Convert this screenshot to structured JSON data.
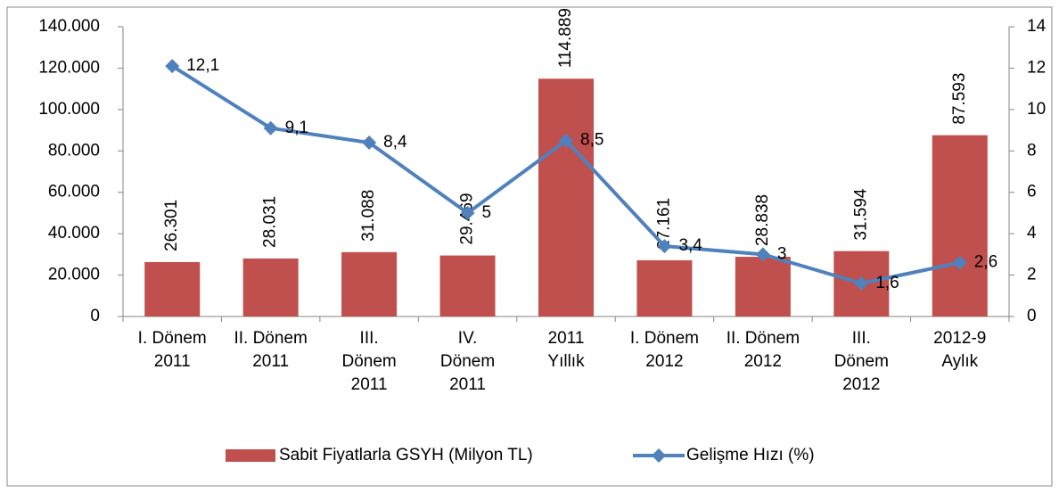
{
  "chart_data": {
    "type": "bar",
    "categories": [
      "I. Dönem\n2011",
      "II. Dönem\n2011",
      "III.\nDönem\n2011",
      "IV.\nDönem\n2011",
      "2011\nYıllık",
      "I. Dönem\n2012",
      "II. Dönem\n2012",
      "III.\nDönem\n2012",
      "2012-9\nAylık"
    ],
    "series": [
      {
        "name": "Sabit Fiyatlarla GSYH (Milyon TL)",
        "color": "#c0504d",
        "type": "bar",
        "values": [
          26301,
          28031,
          31088,
          29469,
          114889,
          27161,
          28838,
          31594,
          87593
        ],
        "value_labels": [
          "26.301",
          "28.031",
          "31.088",
          "29.469",
          "114.889",
          "27.161",
          "28.838",
          "31.594",
          "87.593"
        ]
      },
      {
        "name": "Gelişme Hızı (%)",
        "color": "#4f81bd",
        "type": "line",
        "axis": "y2",
        "values": [
          12.1,
          9.1,
          8.4,
          5,
          8.5,
          3.4,
          3,
          1.6,
          2.6
        ],
        "value_labels": [
          "12,1",
          "9,1",
          "8,4",
          "5",
          "8,5",
          "3,4",
          "3",
          "1,6",
          "2,6"
        ]
      }
    ],
    "ylim": [
      0,
      140000
    ],
    "yticks": [
      0,
      {
        "value": 20000,
        "label": "20.000"
      },
      {
        "value": 40000,
        "label": "40.000"
      },
      {
        "value": 60000,
        "label": "60.000"
      },
      {
        "value": 80000,
        "label": "80.000"
      },
      {
        "value": 100000,
        "label": "100.000"
      },
      {
        "value": 120000,
        "label": "120.000"
      },
      {
        "value": 140000,
        "label": "140.000"
      }
    ],
    "y2lim": [
      0,
      14
    ],
    "y2ticks": [
      0,
      2,
      4,
      6,
      8,
      10,
      12,
      14
    ],
    "legend": "bottom"
  }
}
